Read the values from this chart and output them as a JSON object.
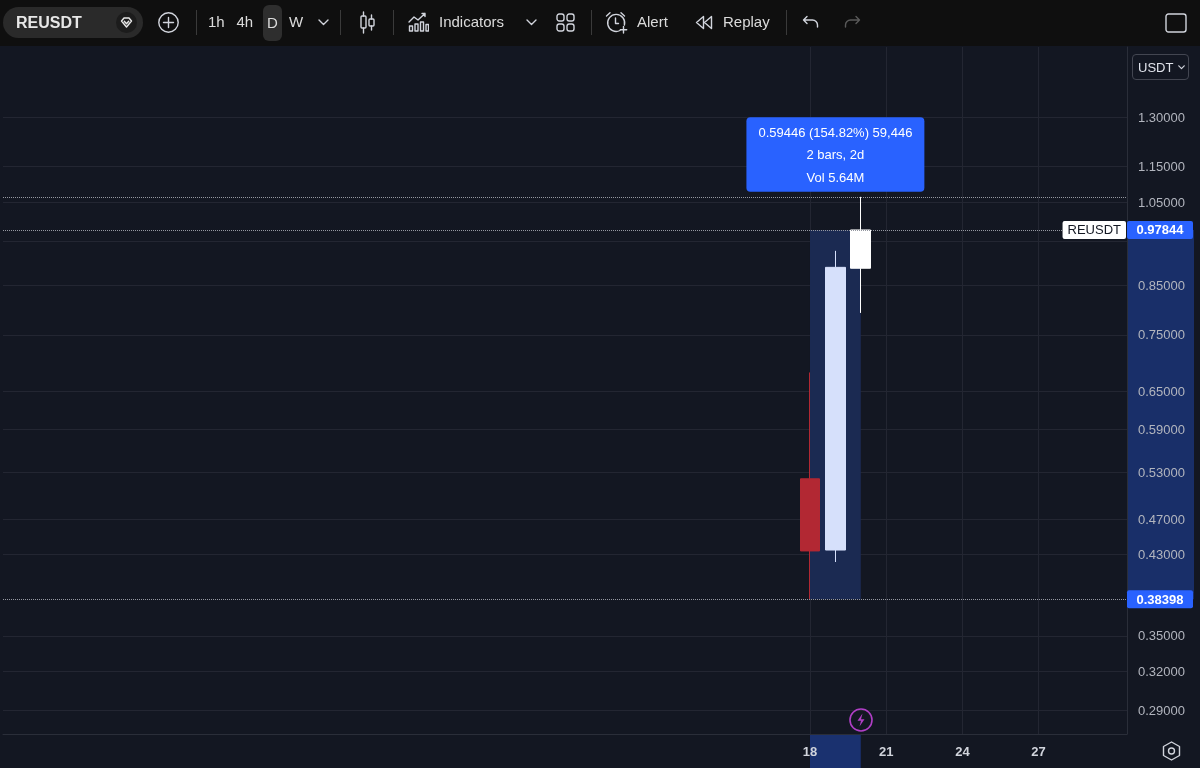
{
  "chart_data": {
    "type": "candlestick",
    "title": "REUSDT",
    "ylabel": "USDT",
    "x": [
      18,
      19,
      20
    ],
    "ohlc": [
      [
        0.521,
        0.682,
        0.38398,
        0.434
      ],
      [
        0.435,
        0.928,
        0.422,
        0.89
      ],
      [
        0.888,
        1.064,
        0.793,
        0.97844
      ]
    ],
    "colors": [
      "#b22833",
      "#d6e0fb",
      "#ffffff"
    ],
    "series": [
      {
        "type": "bar",
        "x": [
          19
        ],
        "base": [
          0.38398
        ],
        "values": [
          0.59446
        ],
        "color": "#1b2a52"
      }
    ],
    "log": true,
    "xlim": [
      -13.77,
      30.48
    ],
    "xticks": [
      18,
      21,
      24,
      27
    ],
    "ylim": [
      0.273,
      1.555
    ],
    "yticks": [
      {
        "value": 0.29,
        "label": "0.29000"
      },
      {
        "value": 0.32,
        "label": "0.32000"
      },
      {
        "value": 0.35,
        "label": "0.35000"
      },
      {
        "value": 0.43,
        "label": "0.43000"
      },
      {
        "value": 0.47,
        "label": "0.47000"
      },
      {
        "value": 0.53,
        "label": "0.53000"
      },
      {
        "value": 0.59,
        "label": "0.59000"
      },
      {
        "value": 0.65,
        "label": "0.65000"
      },
      {
        "value": 0.75,
        "label": "0.75000"
      },
      {
        "value": 0.85,
        "label": "0.85000"
      },
      {
        "value": 0.95,
        "label": null
      },
      {
        "value": 1.05,
        "label": "1.05000"
      },
      {
        "value": 1.15,
        "label": "1.15000"
      },
      {
        "value": 1.3,
        "label": "1.30000"
      }
    ],
    "grid": true,
    "ref_lines": [
      {
        "axis": "y",
        "value": 1.064,
        "line_style": "dotted"
      },
      {
        "axis": "y",
        "value": 0.97844,
        "label": "0.97844",
        "line_style": "dotted"
      },
      {
        "axis": "y",
        "value": 0.38398,
        "label": "0.38398",
        "line_style": "dotted"
      }
    ],
    "annotations": [
      "1h",
      "4h",
      "D",
      "W",
      "Indicators",
      "Alert",
      "Replay",
      "0.59446 (154.82%) 59,446\n2 bars, 2d\nVol 5.64M"
    ]
  }
}
